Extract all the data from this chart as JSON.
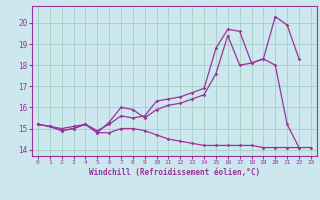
{
  "xlabel": "Windchill (Refroidissement éolien,°C)",
  "xlim": [
    -0.5,
    23.5
  ],
  "ylim": [
    13.7,
    20.8
  ],
  "yticks": [
    14,
    15,
    16,
    17,
    18,
    19,
    20
  ],
  "xticks": [
    0,
    1,
    2,
    3,
    4,
    5,
    6,
    7,
    8,
    9,
    10,
    11,
    12,
    13,
    14,
    15,
    16,
    17,
    18,
    19,
    20,
    21,
    22,
    23
  ],
  "bg_color": "#cce8ee",
  "grid_color": "#99ccbb",
  "line_color": "#993399",
  "line_top": [
    15.2,
    15.1,
    15.0,
    15.1,
    15.2,
    14.9,
    15.2,
    15.6,
    15.5,
    15.6,
    16.3,
    16.4,
    16.5,
    16.7,
    16.9,
    18.8,
    19.7,
    19.6,
    18.1,
    18.3,
    20.3,
    19.9,
    18.3,
    null
  ],
  "line_mid": [
    15.2,
    15.1,
    14.9,
    15.0,
    15.2,
    14.8,
    15.3,
    16.0,
    15.9,
    15.5,
    15.9,
    16.1,
    16.2,
    16.4,
    16.6,
    17.6,
    19.4,
    18.0,
    18.1,
    18.3,
    18.0,
    15.2,
    14.1,
    null
  ],
  "line_bot": [
    15.2,
    15.1,
    14.9,
    15.0,
    15.2,
    14.8,
    14.8,
    15.0,
    15.0,
    14.9,
    14.7,
    14.5,
    14.4,
    14.3,
    14.2,
    14.2,
    14.2,
    14.2,
    14.2,
    14.1,
    14.1,
    14.1,
    14.1,
    14.1
  ]
}
